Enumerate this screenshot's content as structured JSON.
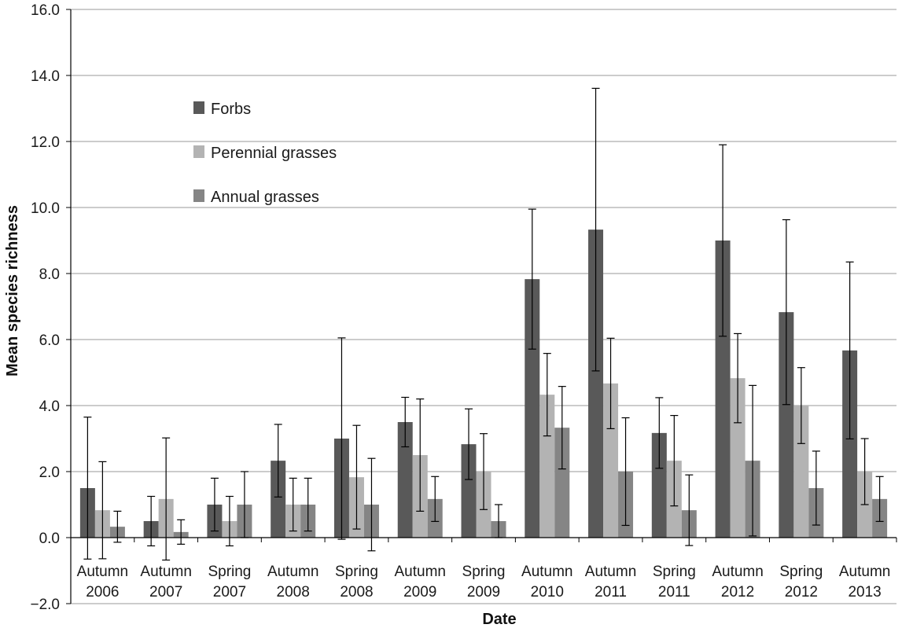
{
  "chart_data": {
    "type": "bar",
    "title": "",
    "xlabel": "Date",
    "ylabel": "Mean species richness",
    "ylim": [
      -2.0,
      16.0
    ],
    "yticks": [
      "−2.0",
      "0.0",
      "2.0",
      "4.0",
      "6.0",
      "8.0",
      "10.0",
      "12.0",
      "14.0",
      "16.0"
    ],
    "grid": true,
    "legend_position": "top-left",
    "categories": [
      [
        "Autumn",
        "2006"
      ],
      [
        "Autumn",
        "2007"
      ],
      [
        "Spring",
        "2007"
      ],
      [
        "Autumn",
        "2008"
      ],
      [
        "Spring",
        "2008"
      ],
      [
        "Autumn",
        "2009"
      ],
      [
        "Spring",
        "2009"
      ],
      [
        "Autumn",
        "2010"
      ],
      [
        "Autumn",
        "2011"
      ],
      [
        "Spring",
        "2011"
      ],
      [
        "Autumn",
        "2012"
      ],
      [
        "Spring",
        "2012"
      ],
      [
        "Autumn",
        "2013"
      ]
    ],
    "series": [
      {
        "name": "Forbs",
        "color": "#595959",
        "values": [
          1.5,
          0.5,
          1.0,
          2.33,
          3.0,
          3.5,
          2.83,
          7.83,
          9.33,
          3.17,
          9.0,
          6.83,
          5.67
        ],
        "error": [
          2.15,
          0.75,
          0.8,
          1.1,
          3.05,
          0.75,
          1.07,
          2.12,
          4.28,
          1.07,
          2.9,
          2.8,
          2.68
        ]
      },
      {
        "name": "Perennial grasses",
        "color": "#b3b3b3",
        "values": [
          0.83,
          1.17,
          0.5,
          1.0,
          1.83,
          2.5,
          2.0,
          4.33,
          4.67,
          2.33,
          4.83,
          4.0,
          2.0
        ],
        "error": [
          1.47,
          1.85,
          0.75,
          0.8,
          1.57,
          1.7,
          1.15,
          1.25,
          1.37,
          1.37,
          1.35,
          1.15,
          1.0
        ]
      },
      {
        "name": "Annual grasses",
        "color": "#858585",
        "values": [
          0.33,
          0.17,
          1.0,
          1.0,
          1.0,
          1.17,
          0.5,
          3.33,
          2.0,
          0.83,
          2.33,
          1.5,
          1.17
        ],
        "error": [
          0.47,
          0.37,
          1.0,
          0.8,
          1.4,
          0.68,
          0.5,
          1.25,
          1.63,
          1.07,
          2.28,
          1.12,
          0.68
        ]
      }
    ]
  }
}
